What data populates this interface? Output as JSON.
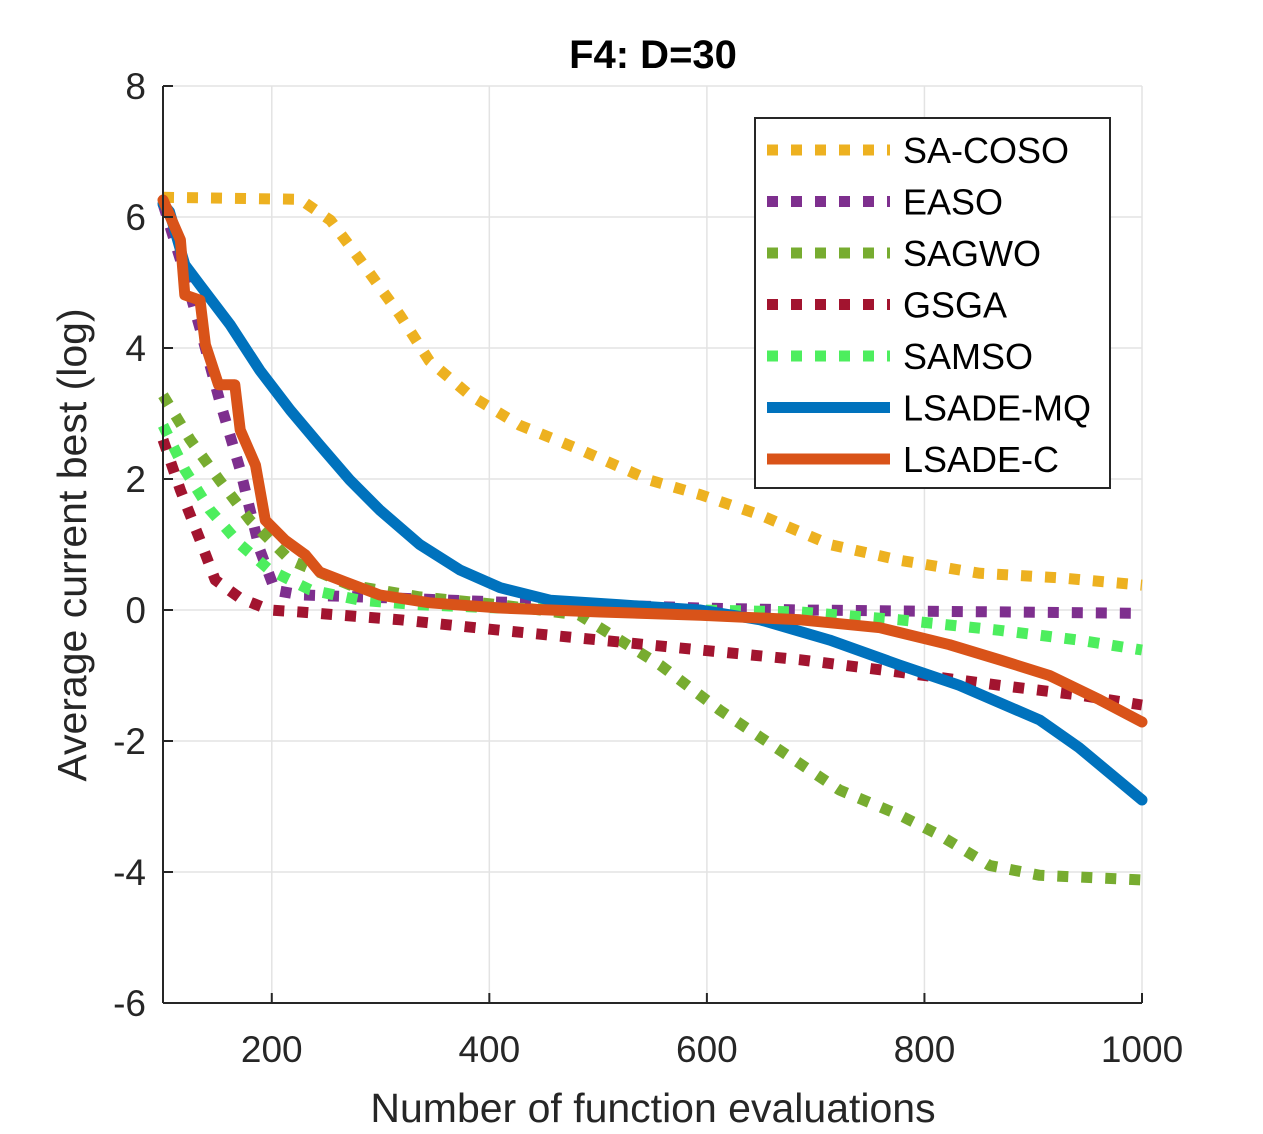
{
  "chart_data": {
    "type": "line",
    "title": "F4: D=30",
    "xlabel": "Number of function evaluations",
    "ylabel": "Average current best (log)",
    "xlim": [
      100,
      1000
    ],
    "ylim": [
      -6,
      8
    ],
    "xticks": [
      200,
      400,
      600,
      800,
      1000
    ],
    "xtick_labels": [
      "200",
      "400",
      "600",
      "800",
      "1000"
    ],
    "yticks": [
      -6,
      -4,
      -2,
      0,
      2,
      4,
      6,
      8
    ],
    "ytick_labels": [
      "-6",
      "-4",
      "-2",
      "0",
      "2",
      "4",
      "6",
      "8"
    ],
    "grid": true,
    "legend_position": "top-right",
    "series": [
      {
        "name": "SA-COSO",
        "color": "#EDB120",
        "style": "dotted",
        "x": [
          100,
          226,
          254,
          281,
          318,
          345,
          382,
          428,
          483,
          548,
          594,
          649,
          713,
          777,
          851,
          925,
          1000
        ],
        "y": [
          6.3,
          6.27,
          5.95,
          5.35,
          4.5,
          3.8,
          3.28,
          2.82,
          2.45,
          1.98,
          1.76,
          1.45,
          1.0,
          0.76,
          0.56,
          0.49,
          0.38
        ]
      },
      {
        "name": "EASO",
        "color": "#7E2F8E",
        "style": "dotted",
        "x": [
          100,
          116,
          134,
          152,
          171,
          189,
          203,
          226,
          318,
          410,
          502,
          594,
          686,
          1000
        ],
        "y": [
          6.2,
          5.35,
          4.3,
          3.2,
          2.14,
          0.92,
          0.3,
          0.23,
          0.18,
          0.12,
          0.08,
          0.03,
          0.0,
          -0.05
        ]
      },
      {
        "name": "SAGWO",
        "color": "#77AC30",
        "style": "dotted",
        "x": [
          100,
          125,
          152,
          180,
          217,
          272,
          336,
          410,
          483,
          520,
          557,
          612,
          667,
          722,
          777,
          814,
          860,
          906,
          1000
        ],
        "y": [
          3.28,
          2.6,
          1.98,
          1.37,
          0.76,
          0.38,
          0.2,
          0.08,
          -0.08,
          -0.46,
          -0.84,
          -1.53,
          -2.14,
          -2.75,
          -3.13,
          -3.44,
          -3.9,
          -4.05,
          -4.12
        ]
      },
      {
        "name": "GSGA",
        "color": "#A2142F",
        "style": "dotted",
        "x": [
          100,
          116,
          134,
          148,
          171,
          198,
          226,
          318,
          410,
          502,
          594,
          686,
          777,
          869,
          942,
          1000
        ],
        "y": [
          2.6,
          1.83,
          1.07,
          0.46,
          0.18,
          0.0,
          -0.03,
          -0.15,
          -0.31,
          -0.46,
          -0.61,
          -0.76,
          -0.95,
          -1.15,
          -1.3,
          -1.45
        ]
      },
      {
        "name": "SAMSO",
        "color": "#4DEE5E",
        "style": "dotted",
        "x": [
          100,
          120,
          143,
          171,
          198,
          235,
          281,
          336,
          410,
          502,
          594,
          686,
          777,
          869,
          942,
          1000
        ],
        "y": [
          2.82,
          2.14,
          1.53,
          1.0,
          0.61,
          0.31,
          0.15,
          0.08,
          0.03,
          0.0,
          0.0,
          -0.03,
          -0.15,
          -0.31,
          -0.46,
          -0.61
        ]
      },
      {
        "name": "LSADE-MQ",
        "color": "#0072BD",
        "style": "solid",
        "x": [
          100,
          106,
          120,
          134,
          162,
          189,
          217,
          244,
          272,
          299,
          336,
          373,
          410,
          456,
          520,
          594,
          649,
          713,
          777,
          832,
          906,
          942,
          1000
        ],
        "y": [
          6.2,
          6.08,
          5.27,
          4.96,
          4.35,
          3.66,
          3.05,
          2.52,
          1.98,
          1.53,
          1.0,
          0.61,
          0.34,
          0.15,
          0.08,
          0.0,
          -0.15,
          -0.46,
          -0.84,
          -1.15,
          -1.68,
          -2.1,
          -2.9
        ]
      },
      {
        "name": "LSADE-C",
        "color": "#D95319",
        "style": "solid",
        "x": [
          100,
          116,
          120,
          134,
          139,
          151,
          166,
          171,
          185,
          194,
          212,
          231,
          244,
          267,
          299,
          345,
          410,
          502,
          594,
          686,
          759,
          823,
          869,
          915,
          961,
          1000
        ],
        "y": [
          6.26,
          5.65,
          4.81,
          4.73,
          4.05,
          3.44,
          3.44,
          2.75,
          2.21,
          1.37,
          1.07,
          0.84,
          0.58,
          0.43,
          0.23,
          0.11,
          0.03,
          -0.03,
          -0.08,
          -0.15,
          -0.27,
          -0.53,
          -0.76,
          -1.0,
          -1.37,
          -1.71
        ]
      }
    ]
  }
}
